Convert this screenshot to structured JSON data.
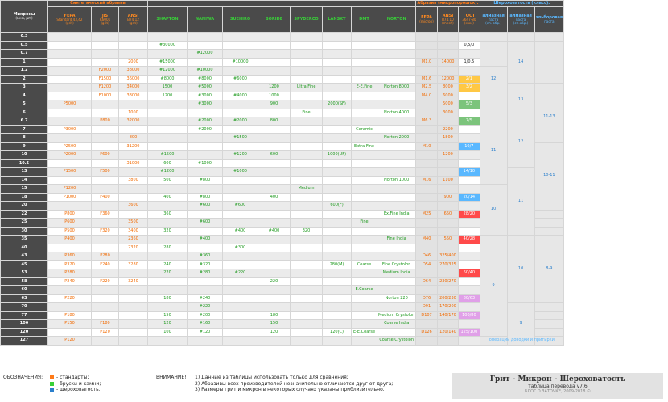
{
  "colors": {
    "orange": "#ff7a18",
    "green": "#38d038",
    "blue": "#2a7fcc"
  },
  "header": {
    "microns": "Микроны",
    "microns_unit": "(мкм, µm)",
    "synthetic": "Синтетический абразив",
    "abrasive": "Абразив (микропорошок):",
    "roughness": "Шероховатость (класс):",
    "cols": [
      {
        "name": "FEPA",
        "sub": "Standard 43,42",
        "unit": "(grit)",
        "cls": "o"
      },
      {
        "name": "JIS",
        "sub": "R6001",
        "unit": "(grit)",
        "cls": "o"
      },
      {
        "name": "ANSI",
        "sub": "B74.12",
        "unit": "(grit)",
        "cls": "o"
      },
      {
        "name": "SHAPTON",
        "sub": "",
        "unit": "",
        "cls": "g"
      },
      {
        "name": "NANIWA",
        "sub": "",
        "unit": "",
        "cls": "g"
      },
      {
        "name": "SUEHIRO",
        "sub": "",
        "unit": "",
        "cls": "g"
      },
      {
        "name": "BORIDE",
        "sub": "",
        "unit": "",
        "cls": "g"
      },
      {
        "name": "SPYDERCO",
        "sub": "",
        "unit": "",
        "cls": "g"
      },
      {
        "name": "LANSKY",
        "sub": "",
        "unit": "",
        "cls": "g"
      },
      {
        "name": "DMT",
        "sub": "",
        "unit": "",
        "cls": "g"
      },
      {
        "name": "NORTON",
        "sub": "",
        "unit": "",
        "cls": "g"
      },
      {
        "name": "FEPA",
        "sub": "",
        "unit": "(micron)",
        "cls": "o"
      },
      {
        "name": "ANSI",
        "sub": "B74.10",
        "unit": "(mesh)",
        "cls": "o"
      },
      {
        "name": "ГОСТ",
        "sub": "3647-80",
        "unit": "(мкм)",
        "cls": "o"
      },
      {
        "name": "алмазная",
        "sub": "паста",
        "unit": "(сп. обр.)",
        "cls": "b"
      },
      {
        "name": "алмазная",
        "sub": "паста",
        "unit": "(сп.обр.)",
        "cls": "b"
      },
      {
        "name": "эльборовая",
        "sub": "паста",
        "unit": "",
        "cls": "b"
      }
    ]
  },
  "rows": [
    {
      "m": "0.3",
      "c": [
        "",
        "",
        "",
        "",
        "",
        "",
        "",
        "",
        "",
        "",
        "",
        "",
        "",
        "",
        "",
        "",
        ""
      ]
    },
    {
      "m": "0.5",
      "c": [
        "",
        "",
        "",
        "#30000",
        "",
        "",
        "",
        "",
        "",
        "",
        "",
        "",
        "",
        "0,5/0",
        "",
        "",
        ""
      ]
    },
    {
      "m": "0.7",
      "c": [
        "",
        "",
        "",
        "",
        "#12000",
        "",
        "",
        "",
        "",
        "",
        "",
        "",
        "",
        "",
        "",
        "",
        ""
      ]
    },
    {
      "m": "1",
      "c": [
        "",
        "",
        "2000",
        "#15000",
        "",
        "#10000",
        "",
        "",
        "",
        "",
        "",
        "M1.0",
        "14000",
        "1/0.5",
        "",
        "",
        ""
      ]
    },
    {
      "m": "1.2",
      "c": [
        "",
        "F2000",
        "38000",
        "#12000",
        "#10000",
        "",
        "",
        "",
        "",
        "",
        "",
        "",
        "",
        "",
        "",
        "",
        ""
      ]
    },
    {
      "m": "2",
      "c": [
        "",
        "F1500",
        "36000",
        "#8000",
        "#8000",
        "#6000",
        "",
        "",
        "",
        "",
        "",
        "M1.6",
        "12000",
        "2/1",
        "",
        "",
        ""
      ]
    },
    {
      "m": "3",
      "c": [
        "",
        "F1200",
        "34000",
        "1500",
        "#5000",
        "",
        "1200",
        "Ultra Fine",
        "",
        "E-E.Fine",
        "Norton 8000",
        "M2.5",
        "8000",
        "3/2",
        "",
        "",
        ""
      ]
    },
    {
      "m": "4",
      "c": [
        "",
        "F1000",
        "33000",
        "1200",
        "#3000",
        "#4000",
        "1000",
        "",
        "",
        "",
        "",
        "M4.0",
        "6000",
        "",
        "",
        "",
        ""
      ]
    },
    {
      "m": "5",
      "c": [
        "P5000",
        "",
        "",
        "",
        "#3000",
        "",
        "900",
        "",
        "2000(SF)",
        "",
        "",
        "",
        "5000",
        "5/3",
        "",
        "",
        ""
      ]
    },
    {
      "m": "6",
      "c": [
        "",
        "",
        "1000",
        "",
        "",
        "",
        "",
        "Fine",
        "",
        "",
        "Norton 4000",
        "",
        "3000",
        "",
        "",
        "",
        ""
      ]
    },
    {
      "m": "6.7",
      "c": [
        "",
        "P800",
        "32000",
        "",
        "#2000",
        "#2000",
        "800",
        "",
        "",
        "",
        "",
        "M6.3",
        "",
        "7/5",
        "",
        "",
        ""
      ]
    },
    {
      "m": "7",
      "c": [
        "P3000",
        "",
        "",
        "",
        "#2000",
        "",
        "",
        "",
        "",
        "Ceramic",
        "",
        "",
        "2200",
        "",
        "",
        "",
        ""
      ]
    },
    {
      "m": "8",
      "c": [
        "",
        "",
        "800",
        "",
        "",
        "#1500",
        "",
        "",
        "",
        "",
        "Norton 2000",
        "",
        "1800",
        "",
        "",
        "",
        ""
      ]
    },
    {
      "m": "9",
      "c": [
        "P2500",
        "",
        "31200",
        "",
        "",
        "",
        "",
        "",
        "",
        "Extra Fine",
        "",
        "M10",
        "",
        "10/7",
        "",
        "",
        ""
      ]
    },
    {
      "m": "10",
      "c": [
        "P2000",
        "F600",
        "",
        "#1500",
        "",
        "#1200",
        "600",
        "",
        "1000(UF)",
        "",
        "",
        "",
        "1200",
        "",
        "",
        "",
        ""
      ]
    },
    {
      "m": "10.2",
      "c": [
        "",
        "",
        "31000",
        "600",
        "#1000",
        "",
        "",
        "",
        "",
        "",
        "",
        "",
        "",
        "",
        "",
        "",
        ""
      ]
    },
    {
      "m": "13",
      "c": [
        "P1500",
        "F500",
        "",
        "#1200",
        "",
        "#1000",
        "",
        "",
        "",
        "",
        "",
        "",
        "",
        "14/10",
        "",
        "",
        ""
      ]
    },
    {
      "m": "14",
      "c": [
        "",
        "",
        "3800",
        "500",
        "#800",
        "",
        "",
        "",
        "",
        "",
        "Norton 1000",
        "M16",
        "1100",
        "",
        "",
        "",
        ""
      ]
    },
    {
      "m": "15",
      "c": [
        "P1200",
        "",
        "",
        "",
        "",
        "",
        "",
        "Medium",
        "",
        "",
        "",
        "",
        "",
        "",
        "",
        "",
        ""
      ]
    },
    {
      "m": "18",
      "c": [
        "P1000",
        "F400",
        "",
        "400",
        "#800",
        "",
        "400",
        "",
        "",
        "",
        "",
        "",
        "900",
        "20/14",
        "",
        "",
        ""
      ]
    },
    {
      "m": "20",
      "c": [
        "",
        "",
        "3600",
        "",
        "#600",
        "#600",
        "",
        "",
        "600(F)",
        "",
        "",
        "",
        "",
        "",
        "",
        "",
        ""
      ]
    },
    {
      "m": "22",
      "c": [
        "P800",
        "F360",
        "",
        "360",
        "",
        "",
        "",
        "",
        "",
        "",
        "Ex.Fine India",
        "M25",
        "650",
        "28/20",
        "",
        "",
        ""
      ]
    },
    {
      "m": "25",
      "c": [
        "P600",
        "",
        "3500",
        "",
        "#600",
        "",
        "",
        "",
        "",
        "Fine",
        "",
        "",
        "",
        "",
        "",
        "",
        ""
      ]
    },
    {
      "m": "30",
      "c": [
        "P500",
        "F320",
        "3400",
        "320",
        "",
        "#400",
        "#400",
        "320",
        "",
        "",
        "",
        "",
        "",
        "",
        "",
        "",
        ""
      ]
    },
    {
      "m": "35",
      "c": [
        "P400",
        "",
        "2360",
        "",
        "#400",
        "",
        "",
        "",
        "",
        "",
        "Fine India",
        "M40",
        "550",
        "40/28",
        "",
        "",
        ""
      ]
    },
    {
      "m": "40",
      "c": [
        "",
        "",
        "2320",
        "280",
        "",
        "#300",
        "",
        "",
        "",
        "",
        "",
        "",
        "",
        "",
        "",
        "",
        ""
      ]
    },
    {
      "m": "43",
      "c": [
        "P360",
        "P280",
        "",
        "",
        "#360",
        "",
        "",
        "",
        "",
        "",
        "",
        "D46",
        "325/400",
        "",
        "",
        "",
        ""
      ]
    },
    {
      "m": "45",
      "c": [
        "P320",
        "F240",
        "3280",
        "240",
        "#320",
        "",
        "",
        "",
        "280(M)",
        "Coarse",
        "Fine Crystolon",
        "D54",
        "270/325",
        "",
        "",
        "",
        ""
      ]
    },
    {
      "m": "53",
      "c": [
        "P280",
        "",
        "",
        "220",
        "#280",
        "#220",
        "",
        "",
        "",
        "",
        "Medium India",
        "",
        "",
        "60/40",
        "",
        "",
        ""
      ]
    },
    {
      "m": "58",
      "c": [
        "P240",
        "F220",
        "3240",
        "",
        "",
        "",
        "220",
        "",
        "",
        "",
        "",
        "D64",
        "230/270",
        "",
        "",
        "",
        ""
      ]
    },
    {
      "m": "60",
      "c": [
        "",
        "",
        "",
        "",
        "",
        "",
        "",
        "",
        "",
        "E.Coarse",
        "",
        "",
        "",
        "",
        "",
        "",
        ""
      ]
    },
    {
      "m": "63",
      "c": [
        "P220",
        "",
        "",
        "180",
        "#240",
        "",
        "",
        "",
        "",
        "",
        "Norton 220",
        "D76",
        "200/230",
        "80/63",
        "",
        "",
        ""
      ]
    },
    {
      "m": "70",
      "c": [
        "",
        "",
        "",
        "",
        "#220",
        "",
        "",
        "",
        "",
        "",
        "",
        "D91",
        "170/200",
        "",
        "",
        "",
        ""
      ]
    },
    {
      "m": "77",
      "c": [
        "P180",
        "",
        "",
        "150",
        "#200",
        "",
        "180",
        "",
        "",
        "",
        "Medium Crystolon",
        "D107",
        "140/170",
        "100/80",
        "",
        "",
        ""
      ]
    },
    {
      "m": "100",
      "c": [
        "P150",
        "F180",
        "",
        "120",
        "#160",
        "",
        "150",
        "",
        "",
        "",
        "Coarse India",
        "",
        "",
        "",
        "",
        "",
        ""
      ]
    },
    {
      "m": "120",
      "c": [
        "",
        "P120",
        "",
        "100",
        "#120",
        "",
        "120",
        "",
        "120(C)",
        "E-E.Coarse",
        "",
        "D126",
        "120/140",
        "125/100",
        "",
        "",
        ""
      ]
    },
    {
      "m": "127",
      "c": [
        "P120",
        "",
        "",
        "",
        "",
        "",
        "",
        "",
        "",
        "",
        "Coarse Crystolon",
        "",
        "",
        "",
        "",
        "",
        ""
      ]
    }
  ],
  "roughness_cells": [
    {
      "r": 1,
      "s": 3,
      "col": 14,
      "t": ""
    },
    {
      "r": 1,
      "s": 5,
      "col": 15,
      "t": "14"
    },
    {
      "r": 1,
      "s": 5,
      "col": 16,
      "t": ""
    },
    {
      "r": 4,
      "s": 3,
      "col": 14,
      "t": "12"
    },
    {
      "r": 6,
      "s": 4,
      "col": 15,
      "t": "13"
    },
    {
      "r": 7,
      "s": 6,
      "col": 16,
      "t": "11-13"
    },
    {
      "r": 10,
      "s": 8,
      "col": 14,
      "t": "11"
    },
    {
      "r": 10,
      "s": 6,
      "col": 15,
      "t": "12"
    },
    {
      "r": 13,
      "s": 8,
      "col": 16,
      "t": "10-11"
    },
    {
      "r": 18,
      "s": 6,
      "col": 14,
      "t": "10"
    },
    {
      "r": 16,
      "s": 8,
      "col": 15,
      "t": "11"
    },
    {
      "r": 24,
      "s": 8,
      "col": 16,
      "t": "8-9"
    },
    {
      "r": 24,
      "s": 8,
      "col": 15,
      "t": "10"
    },
    {
      "r": 24,
      "s": 12,
      "col": 14,
      "t": "9"
    },
    {
      "r": 32,
      "s": 6,
      "col": 15,
      "t": "9"
    },
    {
      "r": 36,
      "s": 1,
      "col": 14,
      "t": "операции доводки и притирки"
    }
  ],
  "notes": {
    "label": "ОБОЗНАЧЕНИЯ:",
    "legend": [
      "- стандарты;",
      "- бруски и камни;",
      "- шероховатость."
    ],
    "attn": "ВНИМАНИЕ!",
    "items": [
      "1) Данные из таблицы использовать только для сравнения;",
      "2) Абразивы всех производителей незначительно отличаются друг от друга;",
      "3) Размеры грит и микрон в некоторых случаях указаны приблизительно."
    ]
  },
  "title": {
    "main": "Грит - Микрон - Шероховатость",
    "sub": "таблица перевода v7.6",
    "copy": "БЛОГ О ЗАТОЧКЕ, 2009-2018 ©"
  }
}
